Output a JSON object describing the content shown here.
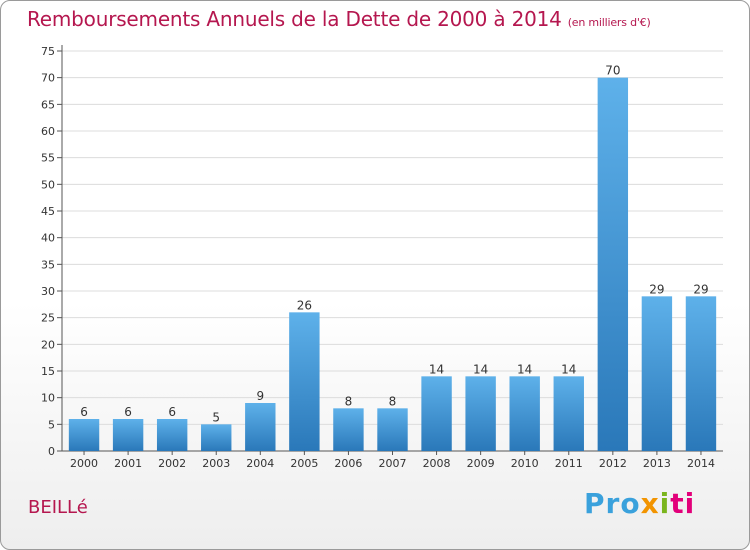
{
  "chart_data": {
    "type": "bar",
    "title": "Remboursements Annuels de la Dette de 2000 à 2014",
    "subtitle": "(en milliers d'€)",
    "categories": [
      "2000",
      "2001",
      "2002",
      "2003",
      "2004",
      "2005",
      "2006",
      "2007",
      "2008",
      "2009",
      "2010",
      "2011",
      "2012",
      "2013",
      "2014"
    ],
    "values": [
      6,
      6,
      6,
      5,
      9,
      26,
      8,
      8,
      14,
      14,
      14,
      14,
      70,
      29,
      29
    ],
    "ylim": [
      0,
      75
    ],
    "yticks": [
      "0",
      "5",
      "10",
      "15",
      "20",
      "25",
      "30",
      "35",
      "40",
      "45",
      "50",
      "55",
      "60",
      "65",
      "70",
      "75"
    ],
    "grid": true,
    "bar_color_top": "#5eb1ea",
    "bar_color_bottom": "#2a78b9"
  },
  "footer": {
    "commune": "BEILLé",
    "logo": [
      "Pro",
      "x",
      "i",
      "ti"
    ]
  }
}
